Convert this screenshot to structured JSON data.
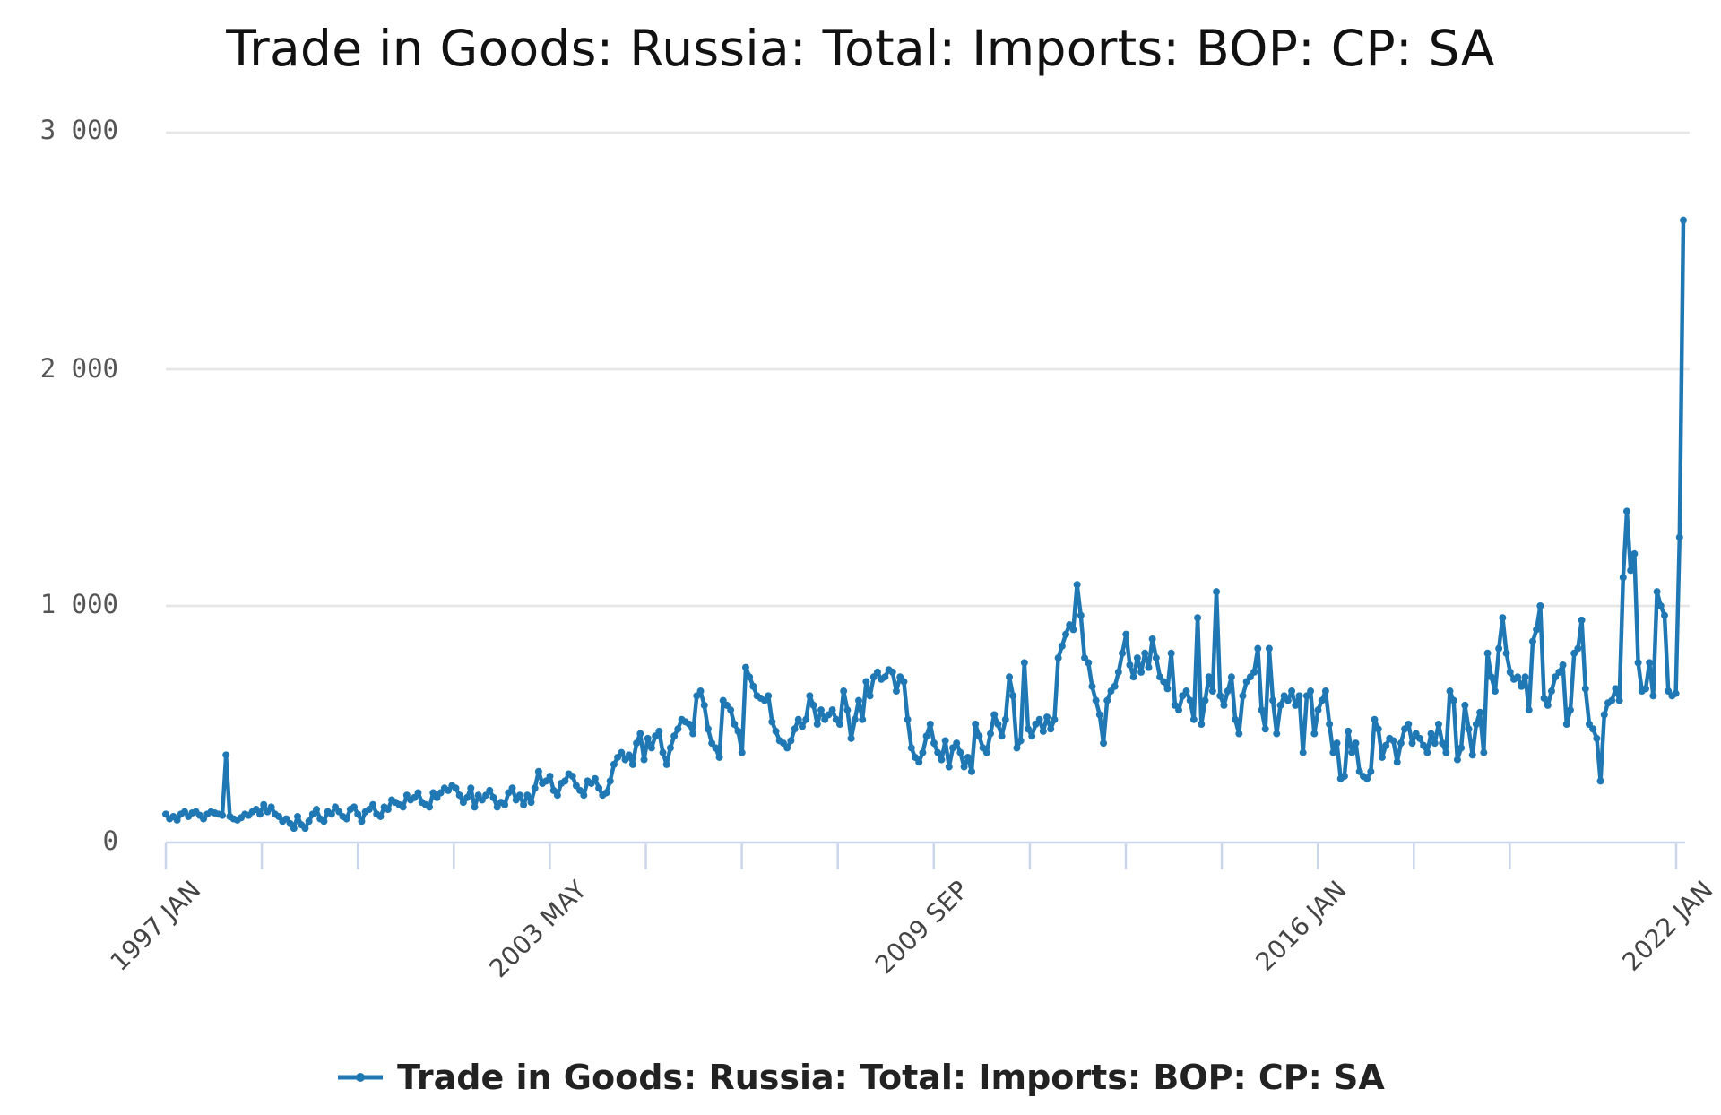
{
  "chart_data": {
    "type": "line",
    "title": "Trade in Goods: Russia: Total: Imports: BOP: CP: SA",
    "xlabel": "",
    "ylabel": "",
    "ylim": [
      0,
      3000
    ],
    "yticks": [
      0,
      1000,
      2000,
      3000
    ],
    "ytick_labels": [
      "0",
      "1 000",
      "2 000",
      "3 000"
    ],
    "xtick_labels": [
      "1997 JAN",
      "2003 MAY",
      "2009 SEP",
      "2016 JAN",
      "2022 JAN"
    ],
    "x_start": "1997 JAN",
    "x_end": "2022 JAN",
    "frequency": "monthly",
    "grid": true,
    "legend_position": "bottom",
    "series": [
      {
        "name": "Trade in Goods: Russia: Total: Imports: BOP: CP: SA",
        "color": "#1f78b4",
        "values": [
          120,
          100,
          110,
          95,
          120,
          130,
          110,
          125,
          130,
          115,
          100,
          120,
          130,
          125,
          120,
          115,
          370,
          110,
          100,
          95,
          105,
          120,
          115,
          130,
          140,
          120,
          160,
          130,
          150,
          120,
          110,
          90,
          100,
          80,
          60,
          110,
          75,
          60,
          90,
          120,
          140,
          100,
          90,
          130,
          120,
          150,
          130,
          110,
          100,
          140,
          150,
          120,
          90,
          130,
          140,
          160,
          120,
          110,
          150,
          140,
          180,
          170,
          160,
          150,
          200,
          180,
          190,
          210,
          170,
          160,
          150,
          210,
          190,
          210,
          230,
          220,
          240,
          230,
          200,
          170,
          190,
          230,
          150,
          200,
          180,
          200,
          220,
          190,
          150,
          170,
          160,
          210,
          230,
          180,
          200,
          160,
          200,
          170,
          230,
          300,
          250,
          260,
          280,
          220,
          200,
          250,
          260,
          290,
          280,
          240,
          220,
          200,
          260,
          250,
          270,
          230,
          200,
          210,
          260,
          330,
          360,
          380,
          350,
          370,
          330,
          420,
          460,
          350,
          440,
          400,
          450,
          470,
          380,
          330,
          400,
          450,
          480,
          520,
          510,
          500,
          460,
          620,
          640,
          580,
          480,
          420,
          400,
          360,
          600,
          580,
          560,
          500,
          470,
          380,
          740,
          700,
          660,
          620,
          610,
          600,
          620,
          510,
          470,
          430,
          420,
          400,
          430,
          480,
          520,
          490,
          520,
          620,
          580,
          500,
          560,
          520,
          540,
          560,
          520,
          500,
          640,
          560,
          440,
          520,
          600,
          520,
          680,
          620,
          700,
          720,
          690,
          700,
          730,
          720,
          640,
          700,
          680,
          520,
          400,
          360,
          340,
          380,
          450,
          500,
          420,
          380,
          350,
          430,
          320,
          400,
          420,
          380,
          320,
          360,
          300,
          500,
          450,
          400,
          380,
          460,
          540,
          500,
          450,
          520,
          700,
          620,
          400,
          430,
          760,
          480,
          450,
          500,
          520,
          470,
          530,
          480,
          520,
          780,
          830,
          880,
          920,
          900,
          1090,
          960,
          780,
          760,
          660,
          600,
          540,
          420,
          600,
          640,
          660,
          720,
          800,
          880,
          750,
          700,
          780,
          720,
          800,
          740,
          860,
          780,
          700,
          680,
          650,
          800,
          580,
          560,
          620,
          640,
          600,
          520,
          950,
          500,
          600,
          700,
          640,
          1060,
          620,
          580,
          640,
          700,
          520,
          460,
          620,
          680,
          700,
          720,
          820,
          560,
          480,
          820,
          600,
          460,
          580,
          620,
          600,
          640,
          580,
          620,
          380,
          620,
          640,
          460,
          560,
          600,
          640,
          500,
          380,
          420,
          270,
          280,
          470,
          380,
          420,
          300,
          280,
          270,
          300,
          520,
          480,
          360,
          410,
          440,
          430,
          340,
          420,
          480,
          500,
          420,
          460,
          440,
          410,
          380,
          460,
          420,
          500,
          420,
          380,
          640,
          600,
          350,
          400,
          580,
          480,
          370,
          500,
          550,
          380,
          800,
          700,
          640,
          820,
          950,
          800,
          720,
          690,
          700,
          660,
          700,
          560,
          850,
          900,
          1000,
          610,
          580,
          640,
          700,
          720,
          750,
          500,
          560,
          800,
          820,
          940,
          650,
          500,
          480,
          440,
          260,
          540,
          590,
          600,
          650,
          600,
          1120,
          1400,
          1150,
          1220,
          760,
          640,
          650,
          760,
          620,
          1060,
          1000,
          960,
          640,
          620,
          630,
          1290,
          2630
        ]
      }
    ]
  },
  "title": "Trade in Goods: Russia: Total: Imports: BOP: CP: SA",
  "yaxis": {
    "labels": [
      "3 000",
      "2 000",
      "1 000",
      "0"
    ]
  },
  "xaxis": {
    "labels": [
      "1997 JAN",
      "2003 MAY",
      "2009 SEP",
      "2016 JAN",
      "2022 JAN"
    ]
  },
  "legend": {
    "label": "Trade in Goods: Russia: Total: Imports: BOP: CP: SA",
    "icon": "line-marker-icon"
  },
  "colors": {
    "series": "#1f78b4",
    "grid": "#e6e6e6",
    "axis": "#ccd6eb"
  }
}
